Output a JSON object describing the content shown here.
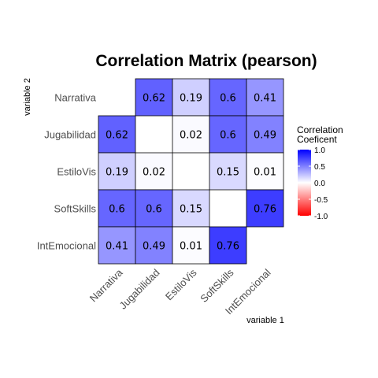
{
  "chart_data": {
    "type": "heatmap",
    "title": "Correlation Matrix (pearson)",
    "xlabel": "variable 1",
    "ylabel": "variable 2",
    "variables": [
      "Narrativa",
      "Jugabilidad",
      "EstiloVis",
      "SoftSkills",
      "IntEmocional"
    ],
    "cells": [
      {
        "x": "Jugabilidad",
        "y": "Narrativa",
        "value": 0.62
      },
      {
        "x": "EstiloVis",
        "y": "Narrativa",
        "value": 0.19
      },
      {
        "x": "SoftSkills",
        "y": "Narrativa",
        "value": 0.6
      },
      {
        "x": "IntEmocional",
        "y": "Narrativa",
        "value": 0.41
      },
      {
        "x": "Narrativa",
        "y": "Jugabilidad",
        "value": 0.62
      },
      {
        "x": "EstiloVis",
        "y": "Jugabilidad",
        "value": 0.02
      },
      {
        "x": "SoftSkills",
        "y": "Jugabilidad",
        "value": 0.6
      },
      {
        "x": "IntEmocional",
        "y": "Jugabilidad",
        "value": 0.49
      },
      {
        "x": "Narrativa",
        "y": "EstiloVis",
        "value": 0.19
      },
      {
        "x": "Jugabilidad",
        "y": "EstiloVis",
        "value": 0.02
      },
      {
        "x": "SoftSkills",
        "y": "EstiloVis",
        "value": 0.15
      },
      {
        "x": "IntEmocional",
        "y": "EstiloVis",
        "value": 0.01
      },
      {
        "x": "Narrativa",
        "y": "SoftSkills",
        "value": 0.6
      },
      {
        "x": "Jugabilidad",
        "y": "SoftSkills",
        "value": 0.6
      },
      {
        "x": "EstiloVis",
        "y": "SoftSkills",
        "value": 0.15
      },
      {
        "x": "IntEmocional",
        "y": "SoftSkills",
        "value": 0.76
      },
      {
        "x": "Narrativa",
        "y": "IntEmocional",
        "value": 0.41
      },
      {
        "x": "Jugabilidad",
        "y": "IntEmocional",
        "value": 0.49
      },
      {
        "x": "EstiloVis",
        "y": "IntEmocional",
        "value": 0.01
      },
      {
        "x": "SoftSkills",
        "y": "IntEmocional",
        "value": 0.76
      }
    ],
    "legend": {
      "title_lines": [
        "Correlation",
        "Coeficent"
      ],
      "range": [
        -1.0,
        1.0
      ],
      "ticks": [
        1.0,
        0.5,
        0.0,
        -0.5,
        -1.0
      ],
      "tick_labels": [
        "1.0",
        "0.5",
        "0.0",
        "-0.5",
        "-1.0"
      ],
      "placement": "right"
    },
    "colors": {
      "low": "#ff0000",
      "mid": "#ffffff",
      "high": "#0000ff"
    },
    "grid": false
  }
}
